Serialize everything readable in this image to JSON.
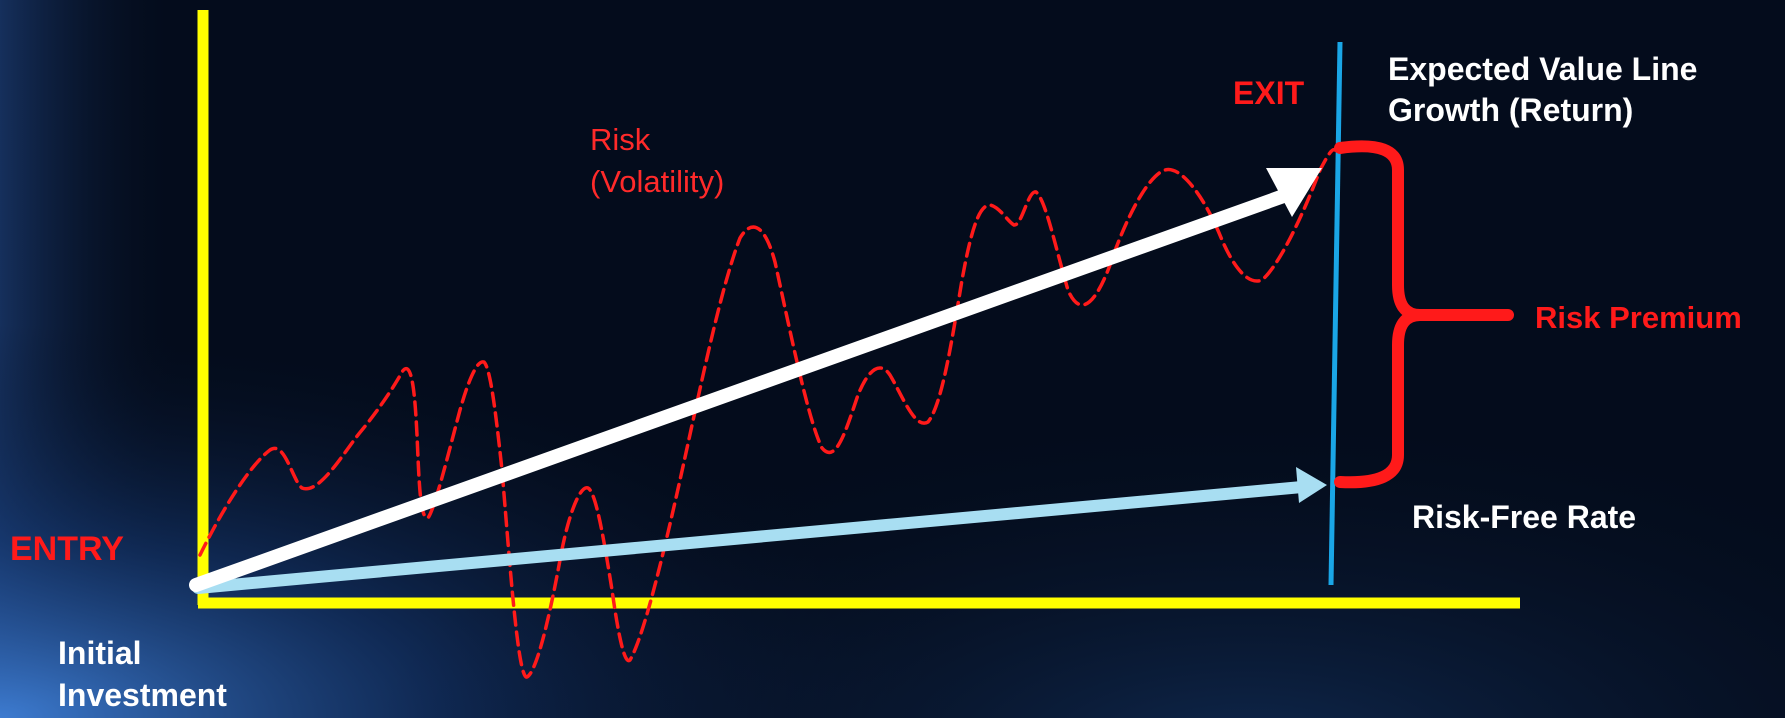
{
  "labels": {
    "entry": "ENTRY",
    "exit": "EXIT",
    "risk_line1": "Risk",
    "risk_line2": "(Volatility)",
    "expected_line1": "Expected Value Line",
    "expected_line2": "Growth (Return)",
    "risk_premium": "Risk Premium",
    "risk_free_rate": "Risk-Free Rate",
    "initial_line1": "Initial",
    "initial_line2": "Investment"
  },
  "colors": {
    "background": "#040c1c",
    "axes": "#ffff00",
    "entry_exit_label": "#ff1a1a",
    "risk_label": "#ff2a2a",
    "volatility_line": "#ff1a1a",
    "expected_arrow": "#ffffff",
    "risk_free_arrow": "#a8def2",
    "exit_line": "#1aa6e6",
    "risk_premium": "#ff1a1a",
    "text_white": "#ffffff"
  }
}
